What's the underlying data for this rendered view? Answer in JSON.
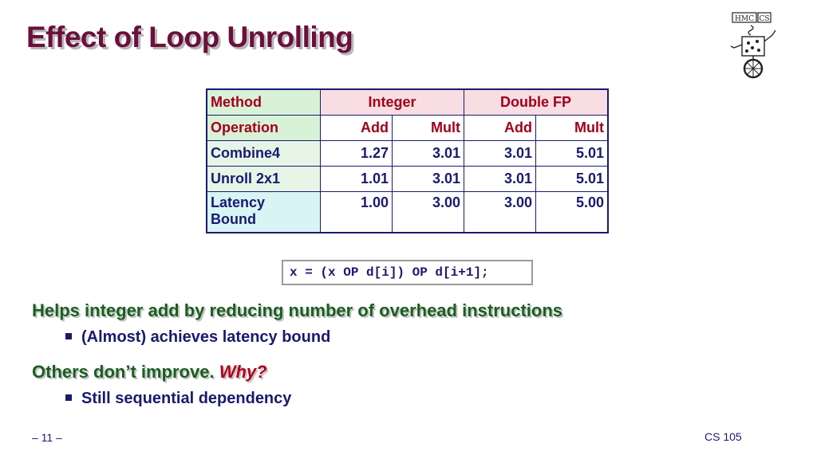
{
  "slide": {
    "title": "Effect of Loop Unrolling",
    "logo_text": "HMC CS",
    "table": {
      "header_row": {
        "label": "Method",
        "group1": "Integer",
        "group2": "Double FP"
      },
      "sub_row": {
        "label": "Operation",
        "cols": [
          "Add",
          "Mult",
          "Add",
          "Mult"
        ]
      },
      "rows": [
        {
          "label": "Combine4",
          "values": [
            "1.27",
            "3.01",
            "3.01",
            "5.01"
          ]
        },
        {
          "label": "Unroll 2x1",
          "values": [
            "1.01",
            "3.01",
            "3.01",
            "5.01"
          ]
        },
        {
          "label_line1": "Latency",
          "label_line2": "Bound",
          "values": [
            "1.00",
            "3.00",
            "3.00",
            "5.00"
          ]
        }
      ]
    },
    "code": "x = (x OP d[i]) OP d[i+1];",
    "point1": {
      "heading": "Helps integer add by reducing number of overhead instructions",
      "bullet": "(Almost) achieves latency bound"
    },
    "point2": {
      "heading": "Others don’t improve.",
      "emphasis": "Why?",
      "bullet": "Still sequential dependency"
    },
    "footer": {
      "page": "– 11 –",
      "course": "CS 105"
    }
  }
}
